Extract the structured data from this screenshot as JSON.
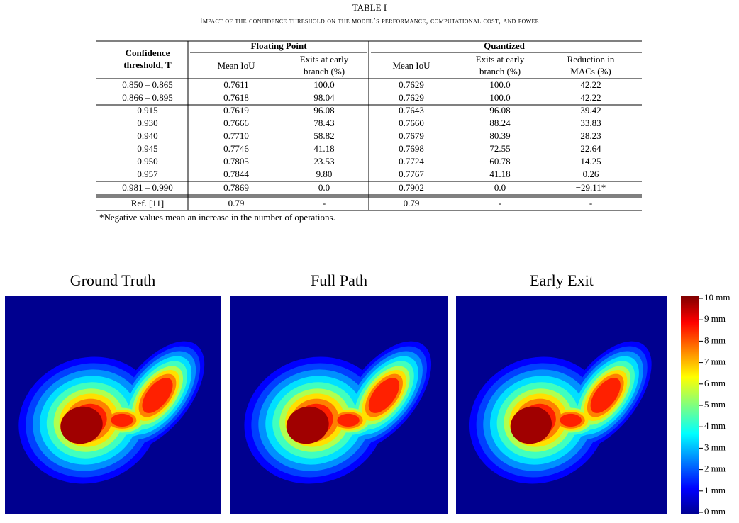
{
  "table": {
    "label": "TABLE I",
    "caption": "Impact of the confidence threshold on the model’s performance, computational cost, and power",
    "header": {
      "groups": [
        "Floating Point",
        "Quantized"
      ],
      "columns": [
        [
          "Confidence",
          "threshold, T"
        ],
        [
          "Mean IoU"
        ],
        [
          "Exits at early",
          "branch (%)"
        ],
        [
          "Mean IoU"
        ],
        [
          "Exits at early",
          "branch (%)"
        ],
        [
          "Reduction in",
          "MACs (%)"
        ]
      ]
    },
    "rows": [
      [
        "0.850 – 0.865",
        "0.7611",
        "100.0",
        "0.7629",
        "100.0",
        "42.22"
      ],
      [
        "0.866 – 0.895",
        "0.7618",
        "98.04",
        "0.7629",
        "100.0",
        "42.22"
      ],
      [
        "0.915",
        "0.7619",
        "96.08",
        "0.7643",
        "96.08",
        "39.42"
      ],
      [
        "0.930",
        "0.7666",
        "78.43",
        "0.7660",
        "88.24",
        "33.83"
      ],
      [
        "0.940",
        "0.7710",
        "58.82",
        "0.7679",
        "80.39",
        "28.23"
      ],
      [
        "0.945",
        "0.7746",
        "41.18",
        "0.7698",
        "72.55",
        "22.64"
      ],
      [
        "0.950",
        "0.7805",
        "23.53",
        "0.7724",
        "60.78",
        "14.25"
      ],
      [
        "0.957",
        "0.7844",
        "9.80",
        "0.7767",
        "41.18",
        "0.26"
      ],
      [
        "0.981 – 0.990",
        "0.7869",
        "0.0",
        "0.7902",
        "0.0",
        "−29.11*"
      ],
      [
        "Ref. [11]",
        "0.79",
        "-",
        "0.79",
        "-",
        "-"
      ]
    ],
    "footnote": "*Negative values mean an increase in the number of operations."
  },
  "figure": {
    "panels": [
      "Ground Truth",
      "Full Path",
      "Early Exit"
    ],
    "colorbar": [
      "10 mm",
      "9 mm",
      "8 mm",
      "7 mm",
      "6 mm",
      "5 mm",
      "4 mm",
      "3 mm",
      "2 mm",
      "1 mm",
      "0 mm"
    ]
  }
}
